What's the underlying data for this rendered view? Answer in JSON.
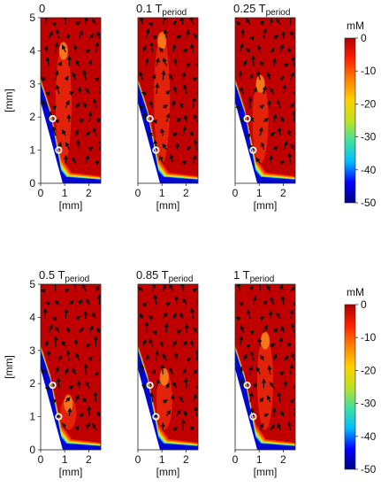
{
  "chart_data": {
    "type": "heatmap",
    "panels": [
      {
        "title_main": "0",
        "title_sub": ""
      },
      {
        "title_main": "0.1 T",
        "title_sub": "period"
      },
      {
        "title_main": "0.25 T",
        "title_sub": "period"
      },
      {
        "title_main": "0.5 T",
        "title_sub": "period"
      },
      {
        "title_main": "0.85 T",
        "title_sub": "period"
      },
      {
        "title_main": "1 T",
        "title_sub": "period"
      }
    ],
    "xlabel": "[mm]",
    "ylabel": "[mm]",
    "xlim": [
      0,
      2.5
    ],
    "ylim": [
      0,
      5
    ],
    "x_ticks": [
      "0",
      "1",
      "2"
    ],
    "y_ticks": [
      "0",
      "1",
      "2",
      "3",
      "4",
      "5"
    ],
    "colorbar": {
      "unit": "mM",
      "range": [
        -50,
        0
      ],
      "ticks": [
        "0",
        "-10",
        "-20",
        "-30",
        "-40",
        "-50"
      ],
      "colors": [
        "#000080",
        "#0000ff",
        "#00bfff",
        "#40e0a0",
        "#c0e020",
        "#ffd000",
        "#ff8000",
        "#ff2000",
        "#b00000"
      ]
    },
    "markers": [
      {
        "x": 0.5,
        "y": 1.95
      },
      {
        "x": 0.75,
        "y": 1.0
      }
    ]
  }
}
